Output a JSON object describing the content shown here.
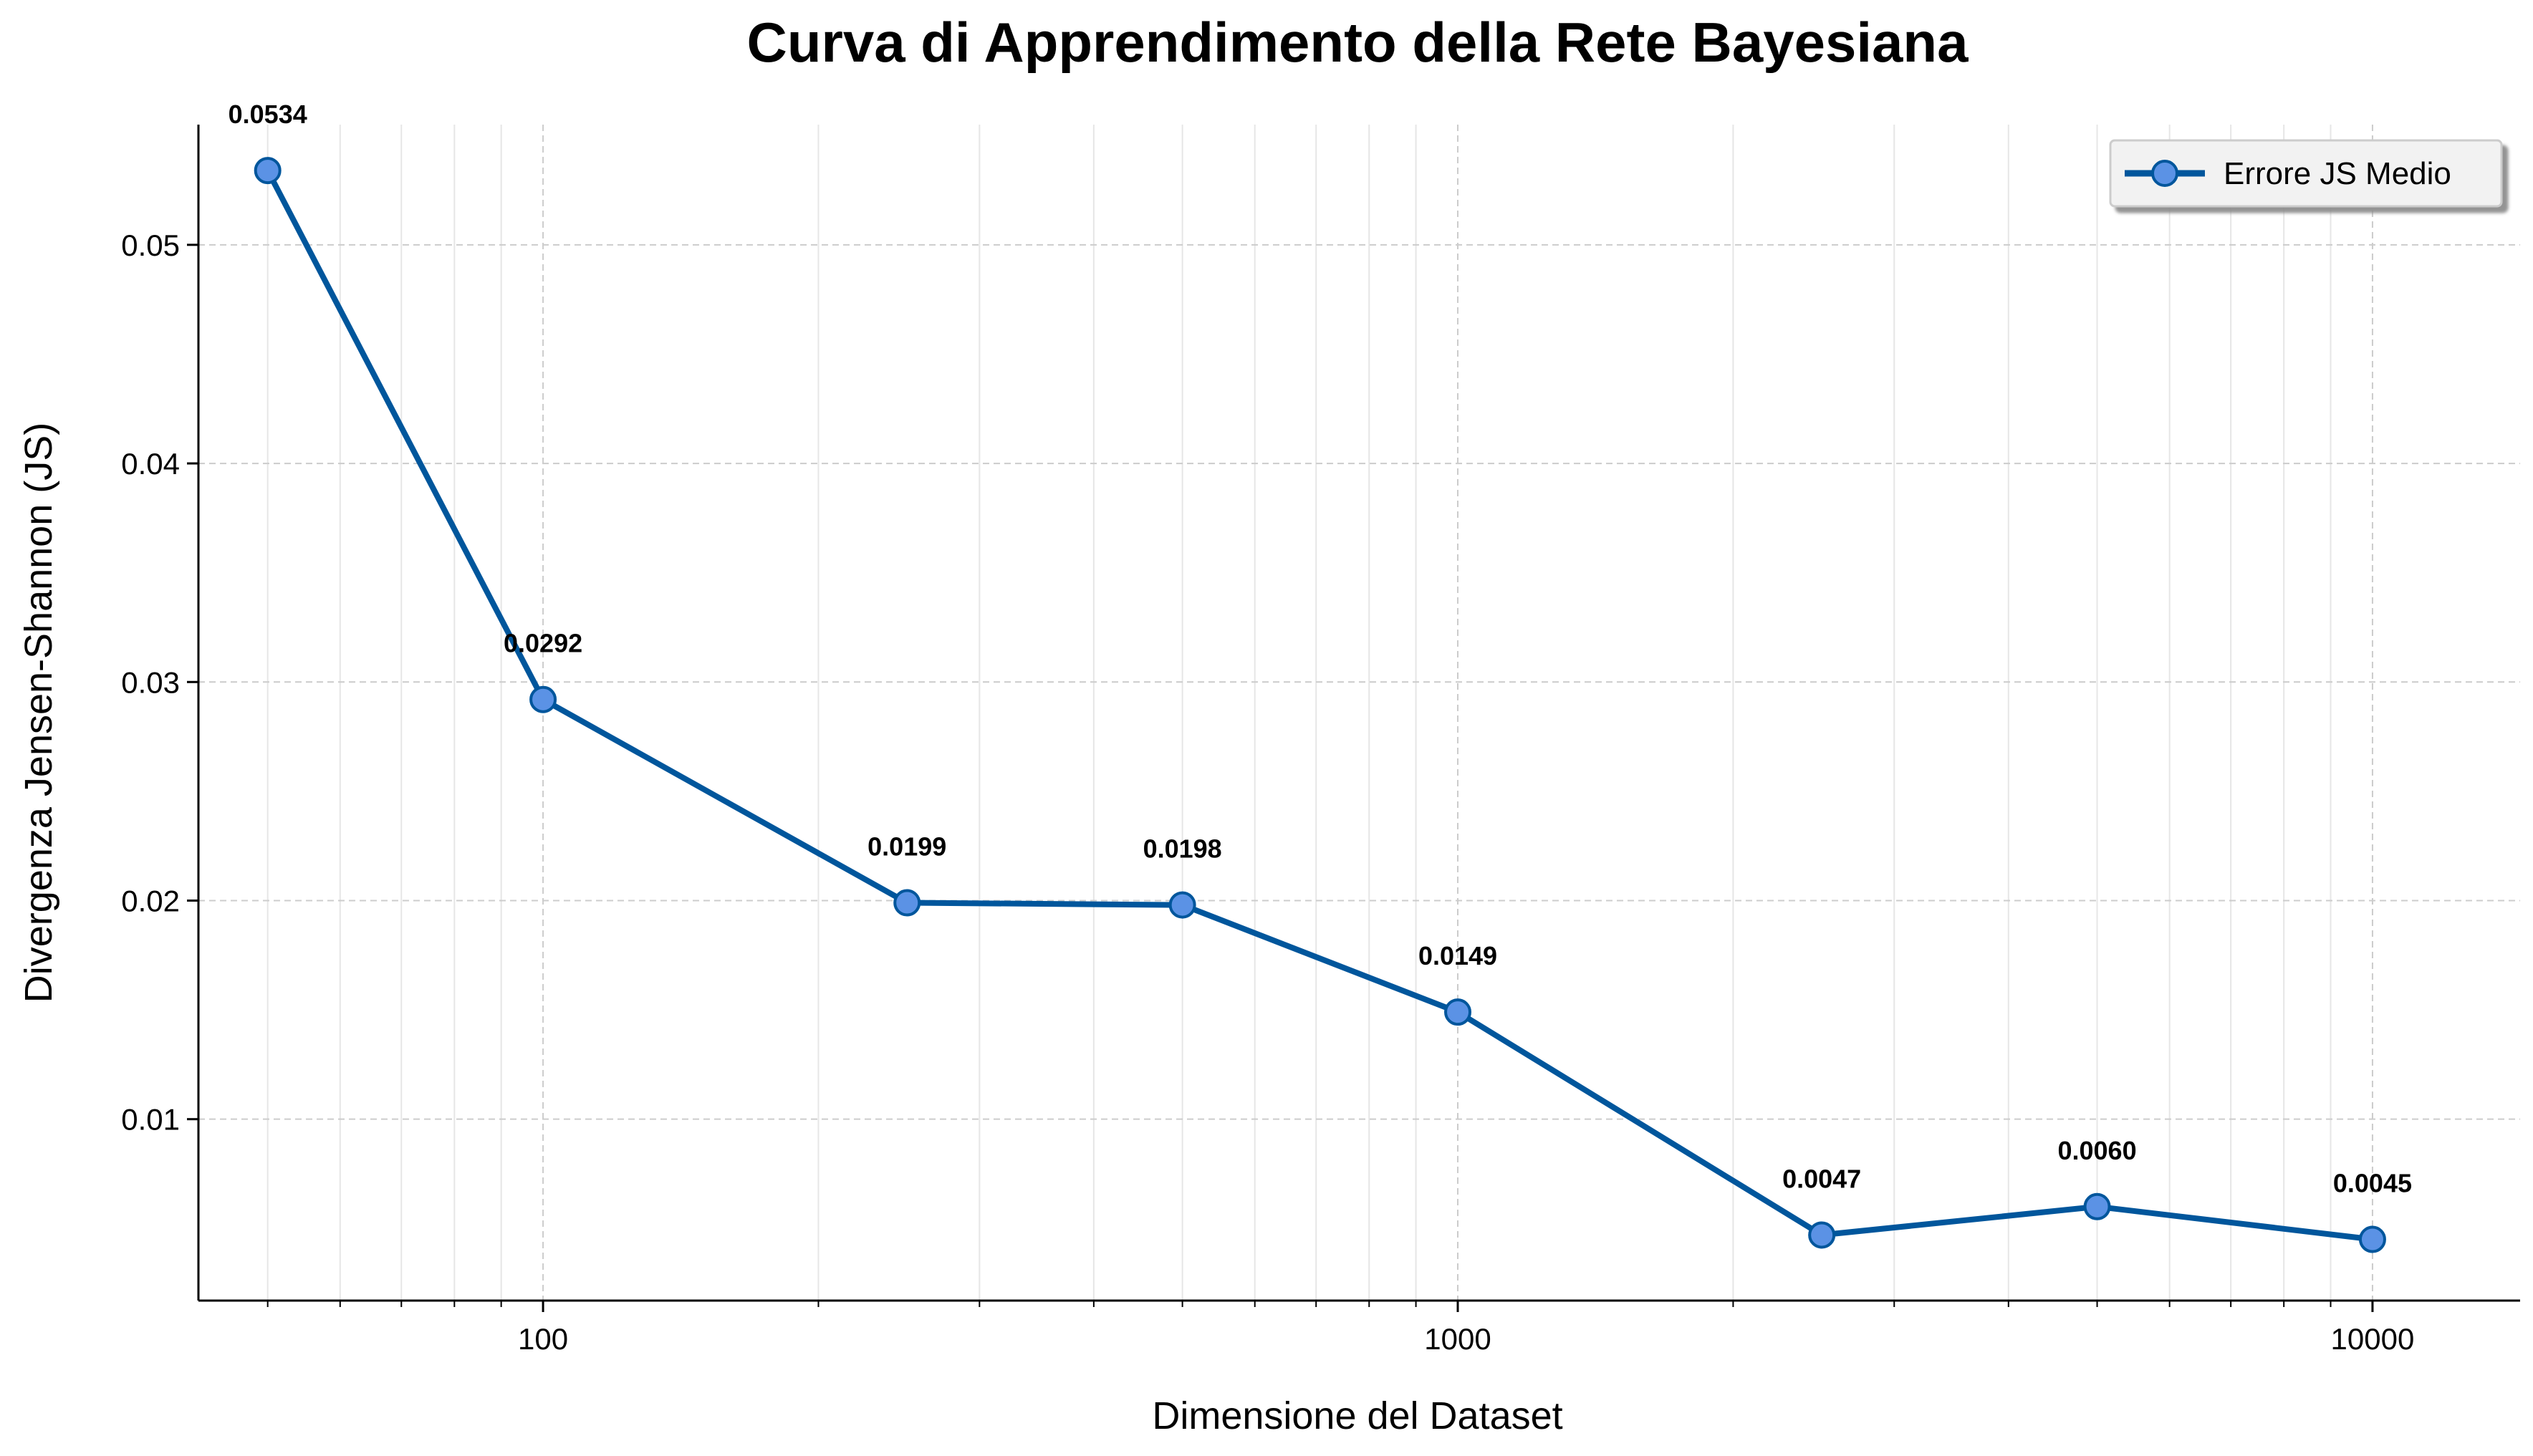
{
  "chart_data": {
    "type": "line",
    "title": "Curva di Apprendimento della Rete Bayesiana",
    "xlabel": "Dimensione del Dataset",
    "ylabel": "Divergenza Jensen-Shannon (JS)",
    "x_scale": "log",
    "xlim": [
      42,
      14500
    ],
    "ylim": [
      0.0017,
      0.0555
    ],
    "x_ticks": [
      100,
      1000,
      10000
    ],
    "x_tick_labels": [
      "100",
      "1000",
      "10000"
    ],
    "y_ticks": [
      0.01,
      0.02,
      0.03,
      0.04,
      0.05
    ],
    "y_tick_labels": [
      "0.01",
      "0.02",
      "0.03",
      "0.04",
      "0.05"
    ],
    "grid": true,
    "legend": {
      "placement": "top-right",
      "entries": [
        "Errore JS Medio"
      ]
    },
    "series": [
      {
        "name": "Errore JS Medio",
        "color": "#00569c",
        "marker_color": "#5b92e5",
        "x": [
          50,
          100,
          250,
          500,
          1000,
          2500,
          5000,
          10000
        ],
        "y": [
          0.0534,
          0.0292,
          0.0199,
          0.0198,
          0.0149,
          0.0047,
          0.006,
          0.0045
        ],
        "labels": [
          "0.0534",
          "0.0292",
          "0.0199",
          "0.0198",
          "0.0149",
          "0.0047",
          "0.0060",
          "0.0045"
        ]
      }
    ]
  }
}
